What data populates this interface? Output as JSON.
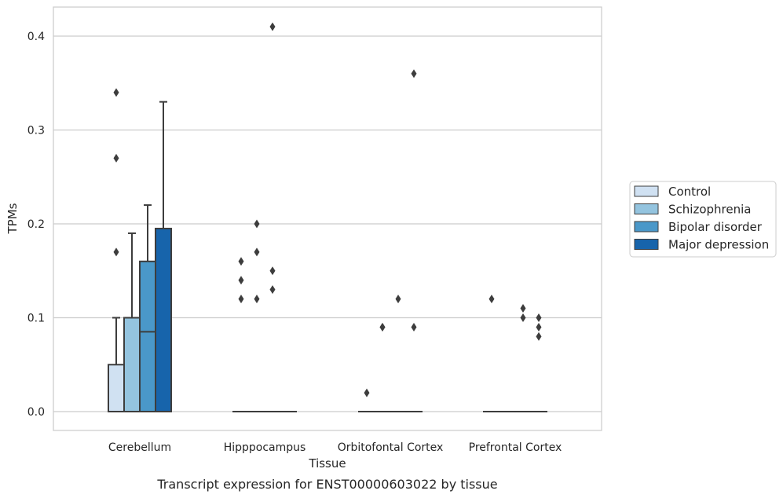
{
  "chart_data": {
    "type": "box",
    "xlabel": "Tissue",
    "ylabel": "TPMs",
    "caption": "Transcript expression for ENST00000603022 by tissue",
    "ylim": [
      -0.02,
      0.43
    ],
    "yticks": [
      "0.0",
      "0.1",
      "0.2",
      "0.3",
      "0.4"
    ],
    "grid": true,
    "legend_position": "right",
    "categories": [
      "Cerebellum",
      "Hipppocampus",
      "Orbitofontal Cortex",
      "Prefrontal Cortex"
    ],
    "series": [
      {
        "name": "Control",
        "color": "#d0e1f2",
        "boxes": [
          {
            "q1": 0.0,
            "median": 0.0,
            "q3": 0.05,
            "whisker_low": 0.0,
            "whisker_high": 0.1,
            "outliers": [
              0.17,
              0.27,
              0.34
            ]
          },
          {
            "q1": 0.0,
            "median": 0.0,
            "q3": 0.0,
            "whisker_low": 0.0,
            "whisker_high": 0.0,
            "outliers": [
              0.12,
              0.14,
              0.16
            ]
          },
          {
            "q1": 0.0,
            "median": 0.0,
            "q3": 0.0,
            "whisker_low": 0.0,
            "whisker_high": 0.0,
            "outliers": [
              0.02
            ]
          },
          {
            "q1": 0.0,
            "median": 0.0,
            "q3": 0.0,
            "whisker_low": 0.0,
            "whisker_high": 0.0,
            "outliers": [
              0.12
            ]
          }
        ]
      },
      {
        "name": "Schizophrenia",
        "color": "#94c4df",
        "boxes": [
          {
            "q1": 0.0,
            "median": 0.0,
            "q3": 0.1,
            "whisker_low": 0.0,
            "whisker_high": 0.19,
            "outliers": []
          },
          {
            "q1": 0.0,
            "median": 0.0,
            "q3": 0.0,
            "whisker_low": 0.0,
            "whisker_high": 0.0,
            "outliers": [
              0.12,
              0.17,
              0.2
            ]
          },
          {
            "q1": 0.0,
            "median": 0.0,
            "q3": 0.0,
            "whisker_low": 0.0,
            "whisker_high": 0.0,
            "outliers": [
              0.09,
              0.09
            ]
          },
          {
            "q1": 0.0,
            "median": 0.0,
            "q3": 0.0,
            "whisker_low": 0.0,
            "whisker_high": 0.0,
            "outliers": []
          }
        ]
      },
      {
        "name": "Bipolar disorder",
        "color": "#4a98c9",
        "boxes": [
          {
            "q1": 0.0,
            "median": 0.085,
            "q3": 0.16,
            "whisker_low": 0.0,
            "whisker_high": 0.22,
            "outliers": []
          },
          {
            "q1": 0.0,
            "median": 0.0,
            "q3": 0.0,
            "whisker_low": 0.0,
            "whisker_high": 0.0,
            "outliers": [
              0.13,
              0.15,
              0.41
            ]
          },
          {
            "q1": 0.0,
            "median": 0.0,
            "q3": 0.0,
            "whisker_low": 0.0,
            "whisker_high": 0.0,
            "outliers": [
              0.12
            ]
          },
          {
            "q1": 0.0,
            "median": 0.0,
            "q3": 0.0,
            "whisker_low": 0.0,
            "whisker_high": 0.0,
            "outliers": [
              0.1,
              0.11
            ]
          }
        ]
      },
      {
        "name": "Major depression",
        "color": "#1764ab",
        "boxes": [
          {
            "q1": 0.0,
            "median": 0.0,
            "q3": 0.195,
            "whisker_low": 0.0,
            "whisker_high": 0.33,
            "outliers": []
          },
          {
            "q1": 0.0,
            "median": 0.0,
            "q3": 0.0,
            "whisker_low": 0.0,
            "whisker_high": 0.0,
            "outliers": []
          },
          {
            "q1": 0.0,
            "median": 0.0,
            "q3": 0.0,
            "whisker_low": 0.0,
            "whisker_high": 0.0,
            "outliers": [
              0.09,
              0.36
            ]
          },
          {
            "q1": 0.0,
            "median": 0.0,
            "q3": 0.0,
            "whisker_low": 0.0,
            "whisker_high": 0.0,
            "outliers": [
              0.08,
              0.09,
              0.1
            ]
          }
        ]
      }
    ]
  }
}
